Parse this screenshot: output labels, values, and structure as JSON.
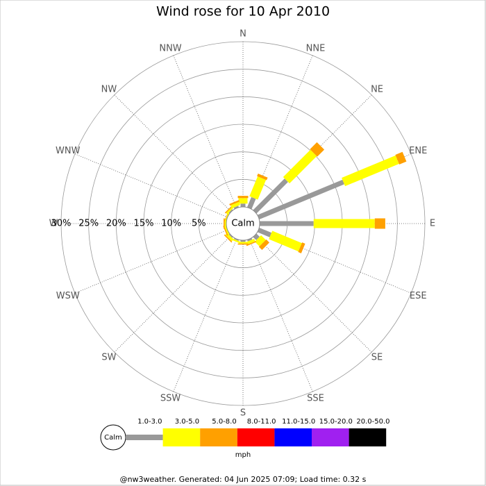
{
  "chart_data": {
    "type": "windrose",
    "title": "Wind rose for 10 Apr 2010",
    "calm_label": "Calm",
    "categories": [
      "N",
      "NNE",
      "NE",
      "ENE",
      "E",
      "ESE",
      "SE",
      "SSE",
      "S",
      "SSW",
      "SW",
      "WSW",
      "W",
      "WNW",
      "NW",
      "NNW"
    ],
    "series": [
      {
        "name": "1.0-3.0",
        "color": "#999999",
        "values": [
          0.6,
          2.0,
          8.1,
          16.7,
          9.8,
          2.4,
          0.8,
          0.3,
          0.3,
          0.2,
          0.2,
          0,
          0,
          0,
          0.2,
          0.3
        ]
      },
      {
        "name": "3.0-5.0",
        "color": "#ffff00",
        "values": [
          1.0,
          3.9,
          7.0,
          10.6,
          11.1,
          5.8,
          1.2,
          0.5,
          0.3,
          0.3,
          0.5,
          0.3,
          0.3,
          0.2,
          0.3,
          0.6
        ]
      },
      {
        "name": "5.0-8.0",
        "color": "#ffa000",
        "values": [
          0.4,
          0.5,
          1.8,
          1.4,
          1.9,
          0.6,
          0.8,
          0.2,
          0.2,
          0,
          0.2,
          0.2,
          0.2,
          0.1,
          0.2,
          0.3
        ]
      },
      {
        "name": "8.0-11.0",
        "color": "#ff0000",
        "values": [
          0,
          0,
          0,
          0,
          0,
          0,
          0,
          0,
          0,
          0,
          0,
          0,
          0,
          0,
          0,
          0
        ]
      },
      {
        "name": "11.0-15.0",
        "color": "#0000ff",
        "values": [
          0,
          0,
          0,
          0,
          0,
          0,
          0,
          0,
          0,
          0,
          0,
          0,
          0,
          0,
          0,
          0
        ]
      },
      {
        "name": "15.0-20.0",
        "color": "#a020f0",
        "values": [
          0,
          0,
          0,
          0,
          0,
          0,
          0,
          0,
          0,
          0,
          0,
          0,
          0,
          0,
          0,
          0
        ]
      },
      {
        "name": "20.0-50.0",
        "color": "#000000",
        "values": [
          0,
          0,
          0,
          0,
          0,
          0,
          0,
          0,
          0,
          0,
          0,
          0,
          0,
          0,
          0,
          0
        ]
      }
    ],
    "rlim": [
      0,
      30
    ],
    "rticks": [
      {
        "value": 5,
        "label": "5%"
      },
      {
        "value": 10,
        "label": "10%"
      },
      {
        "value": 15,
        "label": "15%"
      },
      {
        "value": 20,
        "label": "20%"
      },
      {
        "value": 25,
        "label": "25%"
      },
      {
        "value": 30,
        "label": "30%"
      }
    ],
    "units": "mph",
    "footer": "@nw3weather. Generated: 04 Jun 2025 07:09; Load time: 0.32 s"
  }
}
